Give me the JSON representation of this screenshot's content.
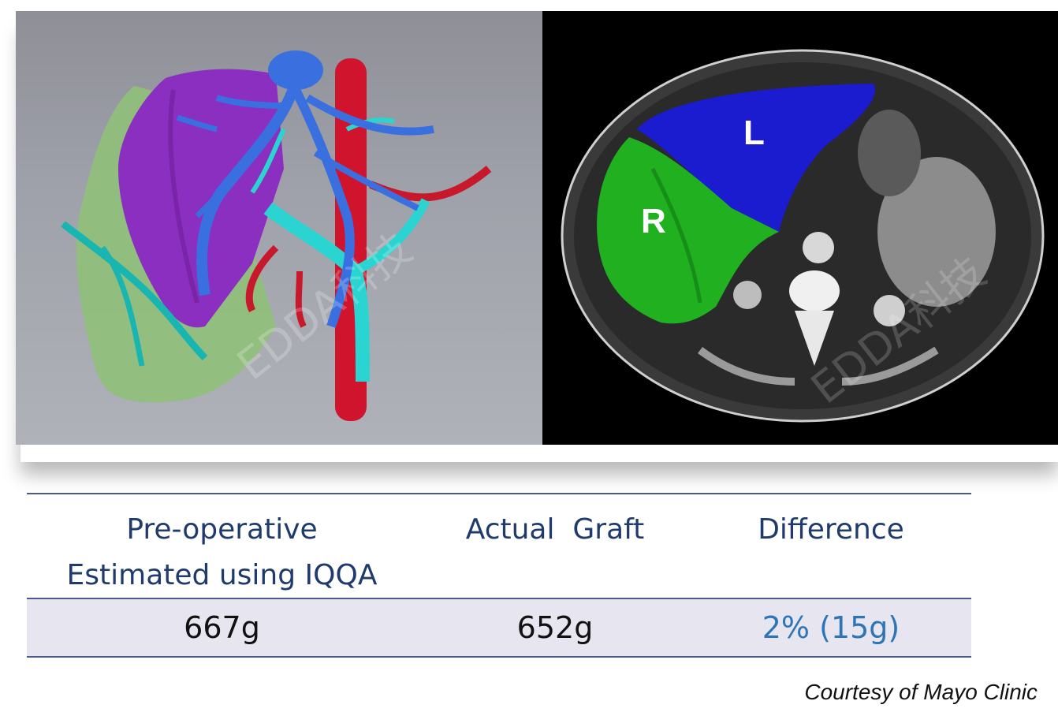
{
  "images": {
    "left": {
      "watermark": "EDDA科技"
    },
    "right": {
      "label_left_lobe": "L",
      "label_right_lobe": "R",
      "watermark": "EDDA科技"
    }
  },
  "table": {
    "headers": [
      "Pre-operative\nEstimated using IQQA",
      "Actual  Graft",
      "Difference"
    ],
    "values": [
      "667g",
      "652g",
      "2% (15g)"
    ],
    "colors": {
      "header_text": "#1f3b6e",
      "value_text": "#111111",
      "difference_text": "#2e75b6",
      "band": "#e6e5f0",
      "rule": "#4a5a8c"
    }
  },
  "courtesy": "Courtesy of Mayo Clinic"
}
